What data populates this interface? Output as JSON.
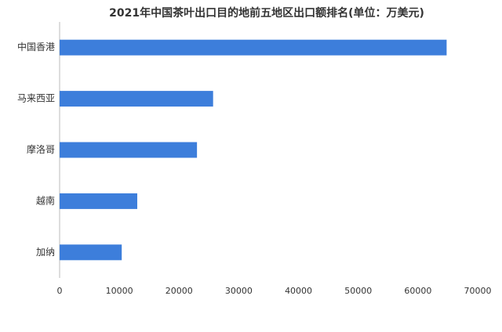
{
  "chart_data": {
    "type": "bar",
    "orientation": "horizontal",
    "title": "2021年中国茶叶出口目的地前五地区出口额排名(单位：万美元)",
    "categories": [
      "中国香港",
      "马来西亚",
      "摩洛哥",
      "越南",
      "加纳"
    ],
    "values": [
      64800,
      25700,
      23000,
      13000,
      10400
    ],
    "color": "#3d7edb",
    "xlim": [
      0,
      70000
    ],
    "xticks": [
      0,
      10000,
      20000,
      30000,
      40000,
      50000,
      60000,
      70000
    ],
    "grid": false
  }
}
